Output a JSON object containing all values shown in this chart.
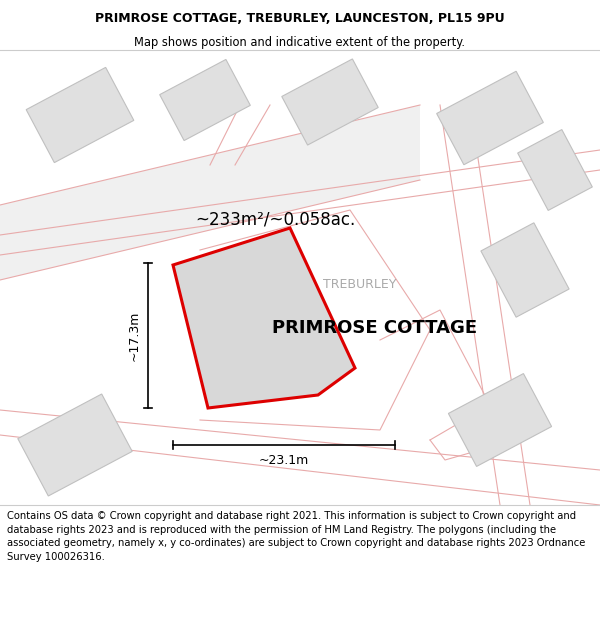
{
  "title_line1": "PRIMROSE COTTAGE, TREBURLEY, LAUNCESTON, PL15 9PU",
  "title_line2": "Map shows position and indicative extent of the property.",
  "property_label": "PRIMROSE COTTAGE",
  "place_label": "TREBURLEY",
  "area_label": "~233m²/~0.058ac.",
  "width_label": "~23.1m",
  "height_label": "~17.3m",
  "footer_text": "Contains OS data © Crown copyright and database right 2021. This information is subject to Crown copyright and database rights 2023 and is reproduced with the permission of HM Land Registry. The polygons (including the associated geometry, namely x, y co-ordinates) are subject to Crown copyright and database rights 2023 Ordnance Survey 100026316.",
  "bg_color": "#ffffff",
  "building_color": "#e0e0e0",
  "building_edge": "#c0c0c0",
  "road_line_color": "#e8aaaa",
  "prop_fill": "#d8d8d8",
  "prop_edge": "#dd0000",
  "place_color": "#aaaaaa",
  "dim_color": "#000000",
  "title_fontsize": 9,
  "footer_fontsize": 7.5
}
